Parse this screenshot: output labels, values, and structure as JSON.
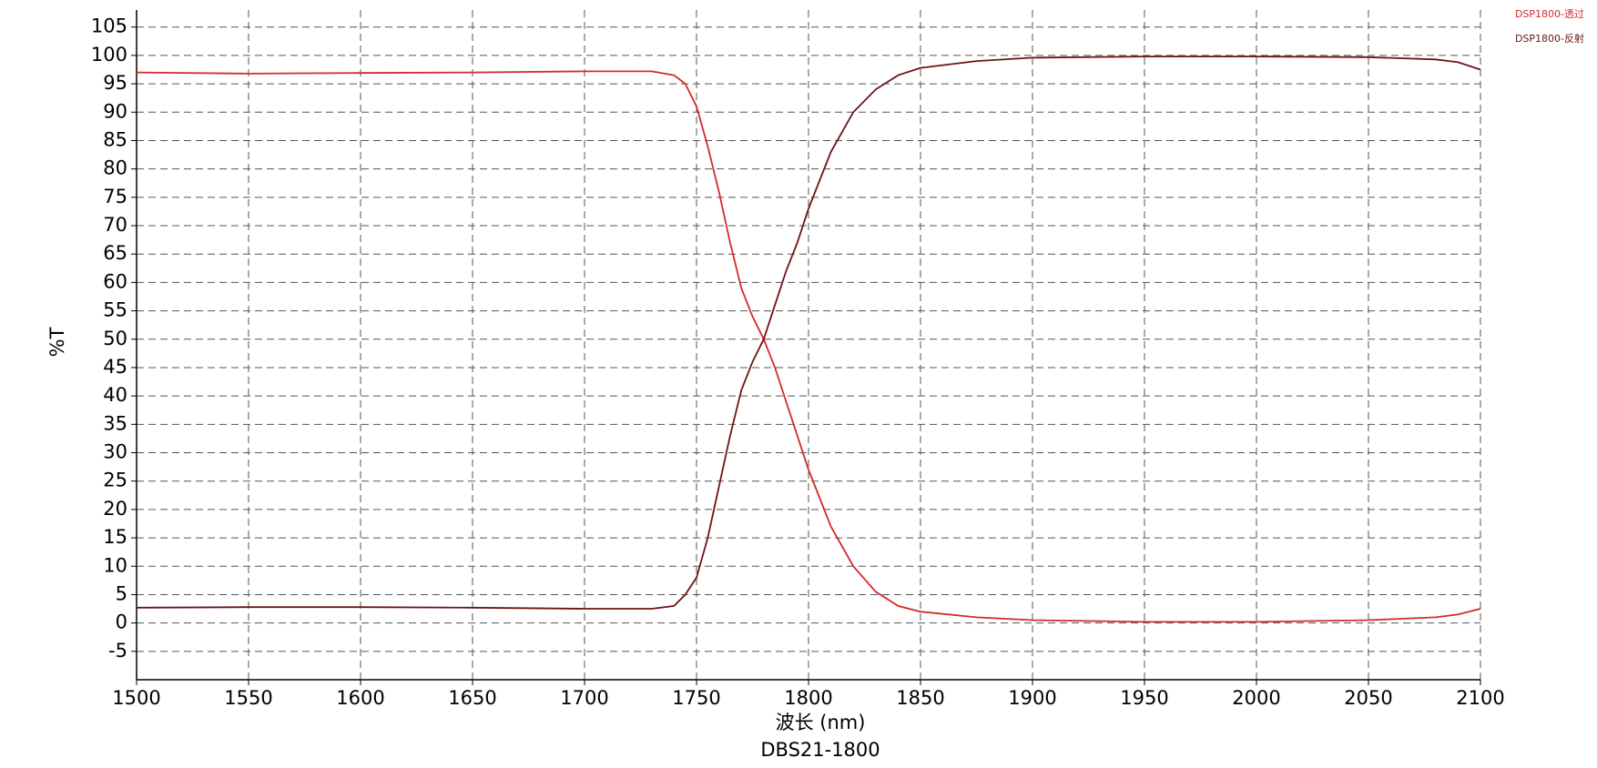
{
  "chart_data": {
    "type": "line",
    "title": "DBS21-1800",
    "x_label": "波长 (nm)",
    "y_label": "%T",
    "x": [
      1500,
      1550,
      1600,
      1650,
      1700,
      1730,
      1740,
      1745,
      1750,
      1755,
      1760,
      1765,
      1770,
      1775,
      1780,
      1785,
      1790,
      1795,
      1800,
      1810,
      1820,
      1830,
      1840,
      1850,
      1875,
      1900,
      1950,
      2000,
      2050,
      2080,
      2090,
      2100
    ],
    "series": [
      {
        "name": "DSP1800-透过",
        "color": "#d42a2a",
        "values": [
          97,
          96.8,
          96.9,
          97,
          97.2,
          97.2,
          96.5,
          95,
          91,
          84,
          76,
          67,
          59,
          54,
          50,
          45,
          39,
          33,
          27,
          17,
          10,
          5.5,
          3,
          2,
          1,
          0.5,
          0.2,
          0.2,
          0.5,
          1,
          1.5,
          2.5
        ]
      },
      {
        "name": "DSP1800-反射",
        "color": "#6b1515",
        "values": [
          2.7,
          2.8,
          2.8,
          2.7,
          2.5,
          2.5,
          3,
          5,
          8,
          15,
          24,
          33,
          41,
          46,
          50,
          56,
          62,
          67,
          73,
          83,
          90,
          94,
          96.5,
          97.8,
          99,
          99.6,
          99.8,
          99.8,
          99.7,
          99.3,
          98.8,
          97.5
        ]
      }
    ],
    "xlim": [
      1500,
      2100
    ],
    "xticks": [
      1500,
      1550,
      1600,
      1650,
      1700,
      1750,
      1800,
      1850,
      1900,
      1950,
      2000,
      2050,
      2100
    ],
    "ylim": [
      -10,
      108
    ],
    "yticks": [
      -5,
      0,
      5,
      10,
      15,
      20,
      25,
      30,
      35,
      40,
      45,
      50,
      55,
      60,
      65,
      70,
      75,
      80,
      85,
      90,
      95,
      100,
      105
    ],
    "grid": true,
    "legend": "top-right"
  }
}
